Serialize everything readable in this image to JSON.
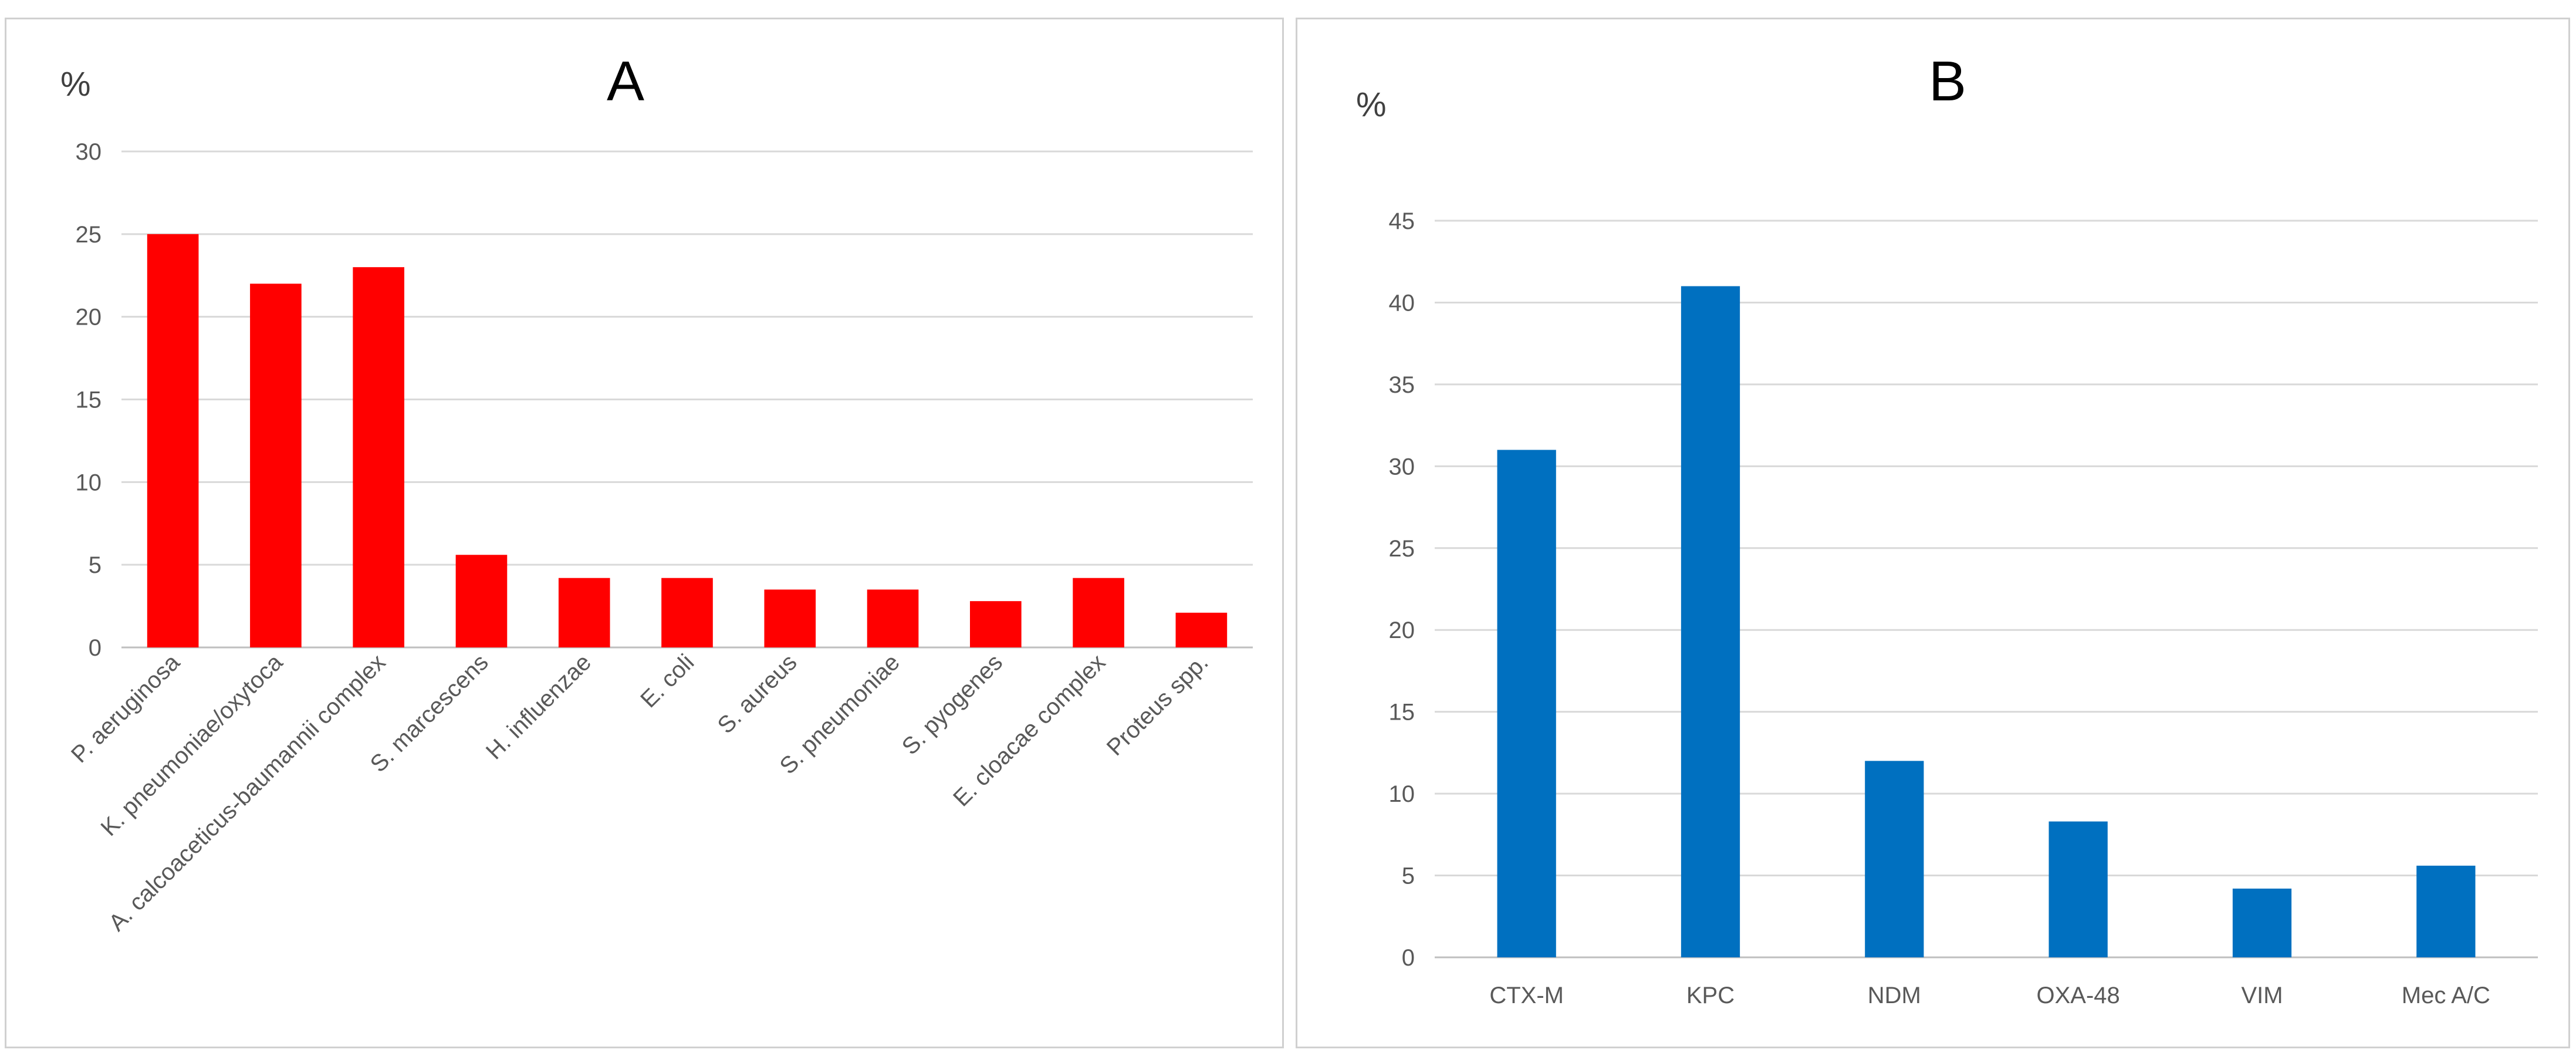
{
  "chart_data": [
    {
      "type": "bar",
      "title": "A",
      "ylabel": "%",
      "xlabel": "",
      "ylim": [
        0,
        30
      ],
      "yticks": [
        0,
        5,
        10,
        15,
        20,
        25,
        30
      ],
      "grid": true,
      "bar_color": "#ff0000",
      "categories": [
        "P. aeruginosa",
        "K. pneumoniae/oxytoca",
        "A. calcoaceticus-baumannii complex",
        "S. marcescens",
        "H. influenzae",
        "E. coli",
        "S. aureus",
        "S. pneumoniae",
        "S. pyogenes",
        "E. cloacae complex",
        "Proteus spp."
      ],
      "values": [
        25,
        22,
        23,
        5.6,
        4.2,
        4.2,
        3.5,
        3.5,
        2.8,
        4.2,
        2.1
      ]
    },
    {
      "type": "bar",
      "title": "B",
      "ylabel": "%",
      "xlabel": "",
      "ylim": [
        0,
        45
      ],
      "yticks": [
        0,
        5,
        10,
        15,
        20,
        25,
        30,
        35,
        40,
        45
      ],
      "grid": true,
      "bar_color": "#0070c0",
      "categories": [
        "CTX-M",
        "KPC",
        "NDM",
        "OXA-48",
        "VIM",
        "Mec A/C"
      ],
      "values": [
        31,
        41,
        12,
        8.3,
        4.2,
        5.6
      ]
    }
  ]
}
